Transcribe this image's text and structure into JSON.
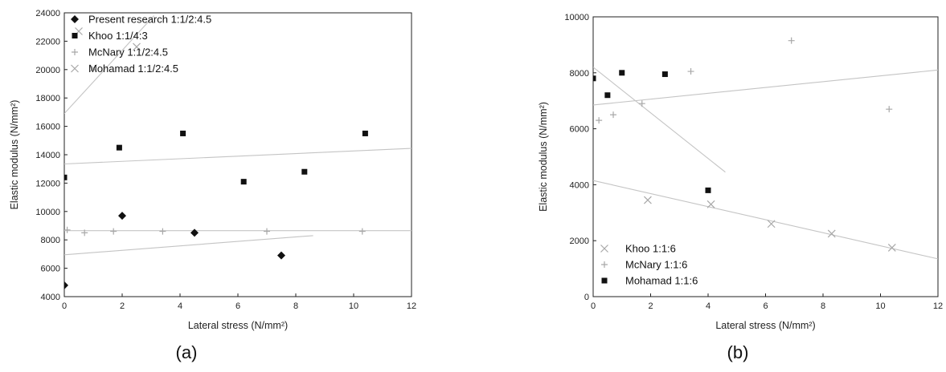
{
  "chart_data": [
    {
      "type": "scatter",
      "panel_label": "(a)",
      "xlabel": "Lateral stress (N/mm²)",
      "ylabel": "Elastic modulus (N/mm²)",
      "xlim": [
        0,
        12
      ],
      "ylim": [
        4000,
        24000
      ],
      "xticks": [
        0,
        2,
        4,
        6,
        8,
        10,
        12
      ],
      "yticks": [
        4000,
        6000,
        8000,
        10000,
        12000,
        14000,
        16000,
        18000,
        20000,
        22000,
        24000
      ],
      "legend_position": "top-right",
      "series": [
        {
          "name": "Present research 1:1/2:4.5",
          "marker": "diamond",
          "color": "#111111",
          "points": [
            [
              0,
              4800
            ],
            [
              2,
              9700
            ],
            [
              4.5,
              8500
            ],
            [
              7.5,
              6900
            ]
          ],
          "fit": [
            [
              0,
              6950
            ],
            [
              8.6,
              8300
            ]
          ]
        },
        {
          "name": "Khoo 1:1/4:3",
          "marker": "square",
          "color": "#111111",
          "points": [
            [
              0,
              12400
            ],
            [
              1.9,
              14500
            ],
            [
              4.1,
              15500
            ],
            [
              6.2,
              12100
            ],
            [
              8.3,
              12800
            ],
            [
              10.4,
              15500
            ]
          ],
          "fit": [
            [
              0,
              13350
            ],
            [
              12,
              14450
            ]
          ]
        },
        {
          "name": "McNary 1:1/2:4.5",
          "marker": "plus",
          "color": "#a8a8a8",
          "points": [
            [
              0.1,
              8700
            ],
            [
              0.7,
              8500
            ],
            [
              1.7,
              8600
            ],
            [
              3.4,
              8600
            ],
            [
              7,
              8600
            ],
            [
              10.3,
              8600
            ]
          ],
          "fit": [
            [
              0,
              8650
            ],
            [
              12,
              8650
            ]
          ]
        },
        {
          "name": "Mohamad 1:1/2:4.5",
          "marker": "x",
          "color": "#a8a8a8",
          "points": [
            [
              0.5,
              22700
            ],
            [
              1,
              20100
            ],
            [
              2.5,
              21600
            ]
          ],
          "fit": [
            [
              0,
              16900
            ],
            [
              3.1,
              23800
            ]
          ]
        }
      ]
    },
    {
      "type": "scatter",
      "panel_label": "(b)",
      "xlabel": "Lateral stress (N/mm²)",
      "ylabel": "Elastic modulus (N/mm²)",
      "xlim": [
        0,
        12
      ],
      "ylim": [
        0,
        10000
      ],
      "xticks": [
        0,
        2,
        4,
        6,
        8,
        10,
        12
      ],
      "yticks": [
        0,
        2000,
        4000,
        6000,
        8000,
        10000
      ],
      "legend_position": "bottom-left",
      "series": [
        {
          "name": "Khoo 1:1:6",
          "marker": "x",
          "color": "#a8a8a8",
          "points": [
            [
              1.9,
              3450
            ],
            [
              4.1,
              3300
            ],
            [
              6.2,
              2600
            ],
            [
              8.3,
              2250
            ],
            [
              10.4,
              1750
            ]
          ],
          "fit": [
            [
              0,
              4150
            ],
            [
              12,
              1350
            ]
          ]
        },
        {
          "name": "McNary 1:1:6",
          "marker": "plus",
          "color": "#a8a8a8",
          "points": [
            [
              0.2,
              6300
            ],
            [
              0.7,
              6500
            ],
            [
              1.7,
              6900
            ],
            [
              3.4,
              8050
            ],
            [
              6.9,
              9150
            ],
            [
              10.3,
              6700
            ]
          ],
          "fit": [
            [
              0,
              6850
            ],
            [
              12,
              8100
            ]
          ]
        },
        {
          "name": "Mohamad 1:1:6",
          "marker": "square",
          "color": "#111111",
          "points": [
            [
              0,
              7800
            ],
            [
              0.5,
              7200
            ],
            [
              1,
              8000
            ],
            [
              2.5,
              7950
            ],
            [
              4,
              3800
            ]
          ],
          "fit": [
            [
              0,
              8200
            ],
            [
              4.6,
              4450
            ]
          ]
        }
      ]
    }
  ]
}
